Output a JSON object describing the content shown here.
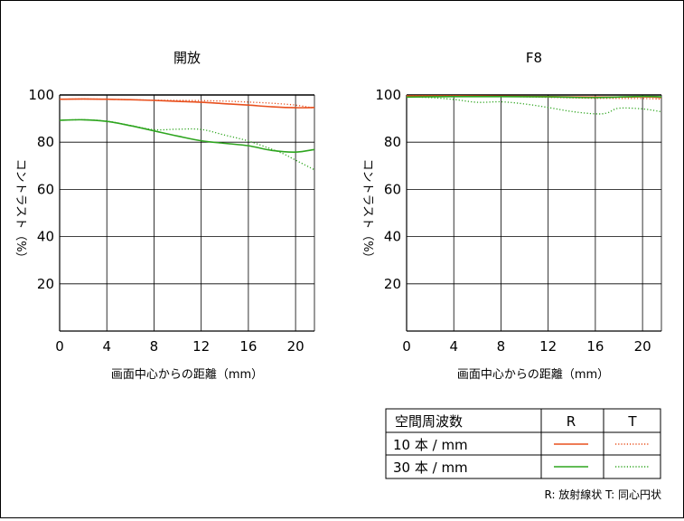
{
  "chart_data": [
    {
      "type": "line",
      "title": "開放",
      "xlabel": "画面中心からの距離（mm）",
      "ylabel": "コントラスト（%）",
      "xlim": [
        0,
        21.6
      ],
      "ylim": [
        0,
        100
      ],
      "xticks": [
        0,
        4,
        8,
        12,
        16,
        20
      ],
      "yticks": [
        20,
        40,
        60,
        80,
        100
      ],
      "grid": true,
      "series": [
        {
          "name": "10本/mm R",
          "x": [
            0,
            2,
            4,
            6,
            8,
            10,
            12,
            14,
            16,
            18,
            20,
            21.6
          ],
          "y": [
            98.2,
            98.3,
            98.2,
            98.0,
            97.7,
            97.3,
            96.9,
            96.3,
            95.7,
            95.0,
            94.6,
            94.7
          ]
        },
        {
          "name": "10本/mm T",
          "x": [
            0,
            2,
            4,
            6,
            8,
            10,
            12,
            14,
            16,
            18,
            20,
            21.6
          ],
          "y": [
            98.2,
            98.3,
            98.2,
            98.0,
            97.8,
            97.7,
            97.6,
            97.4,
            97.0,
            96.5,
            95.7,
            94.4
          ]
        },
        {
          "name": "30本/mm R",
          "x": [
            0,
            2,
            4,
            6,
            8,
            10,
            12,
            14,
            16,
            18,
            20,
            21.6
          ],
          "y": [
            89.3,
            89.5,
            88.8,
            87.0,
            84.8,
            82.6,
            80.6,
            79.5,
            78.5,
            76.5,
            75.8,
            76.9
          ]
        },
        {
          "name": "30本/mm T",
          "x": [
            0,
            2,
            4,
            6,
            8,
            10,
            12,
            14,
            16,
            18,
            19,
            20,
            21.6
          ],
          "y": [
            89.3,
            89.5,
            88.9,
            87.1,
            85.3,
            85.5,
            85.4,
            83.0,
            80.5,
            77.0,
            75.0,
            72.4,
            68.3
          ]
        }
      ]
    },
    {
      "type": "line",
      "title": "F8",
      "xlabel": "画面中心からの距離（mm）",
      "ylabel": "コントラスト（%）",
      "xlim": [
        0,
        21.6
      ],
      "ylim": [
        0,
        100
      ],
      "xticks": [
        0,
        4,
        8,
        12,
        16,
        20
      ],
      "yticks": [
        20,
        40,
        60,
        80,
        100
      ],
      "grid": true,
      "series": [
        {
          "name": "10本/mm R",
          "x": [
            0,
            4,
            8,
            12,
            16,
            20,
            21.6
          ],
          "y": [
            99.6,
            99.6,
            99.5,
            99.3,
            99.1,
            99.2,
            98.9
          ]
        },
        {
          "name": "10本/mm T",
          "x": [
            0,
            4,
            8,
            12,
            16,
            20,
            21.6
          ],
          "y": [
            99.6,
            99.6,
            99.4,
            99.0,
            98.6,
            98.5,
            98.2
          ]
        },
        {
          "name": "30本/mm R",
          "x": [
            0,
            4,
            8,
            12,
            16,
            20,
            21.6
          ],
          "y": [
            99.1,
            99.3,
            99.3,
            99.2,
            98.9,
            99.4,
            99.2
          ]
        },
        {
          "name": "30本/mm T",
          "x": [
            0,
            2,
            4,
            6,
            8,
            10,
            12,
            14,
            16,
            17,
            18,
            20,
            21.6
          ],
          "y": [
            99.2,
            98.9,
            98.1,
            96.9,
            97.1,
            96.2,
            94.7,
            93.0,
            92.0,
            92.4,
            94.4,
            94.1,
            92.9
          ]
        }
      ]
    }
  ],
  "legend": {
    "header": {
      "label": "空間周波数",
      "r": "R",
      "t": "T"
    },
    "rows": [
      {
        "label": "10 本 / mm",
        "color": "#e8501e"
      },
      {
        "label": "30 本 / mm",
        "color": "#2ea51f"
      }
    ],
    "note": "R: 放射線状 T: 同心円状"
  },
  "colors": {
    "red": "#e8501e",
    "green": "#2ea51f",
    "grid": "#000000"
  }
}
